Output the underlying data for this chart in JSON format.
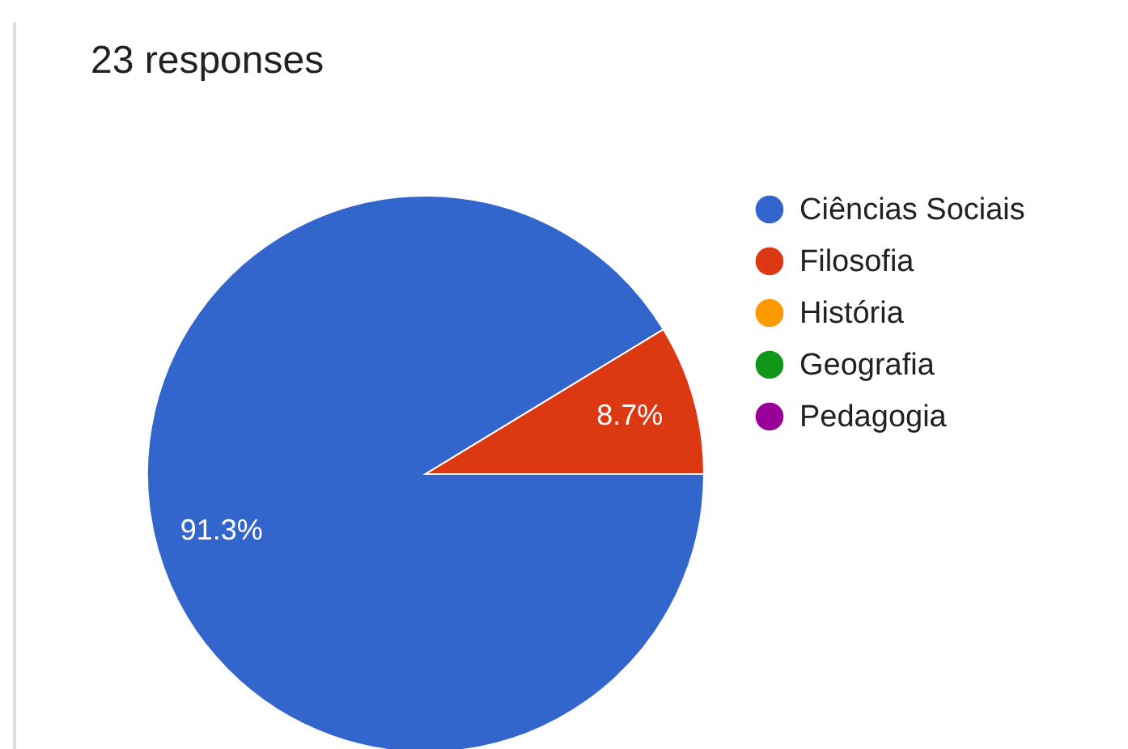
{
  "chart_data": {
    "type": "pie",
    "title": "23 responses",
    "categories": [
      "Ciências Sociais",
      "Filosofia",
      "História",
      "Geografia",
      "Pedagogia"
    ],
    "values": [
      91.3,
      8.7,
      0,
      0,
      0
    ],
    "colors": [
      "#3366cc",
      "#dc3912",
      "#ff9900",
      "#109618",
      "#990099"
    ],
    "value_labels": [
      "91.3%",
      "8.7%",
      null,
      null,
      null
    ],
    "legend": "right"
  }
}
